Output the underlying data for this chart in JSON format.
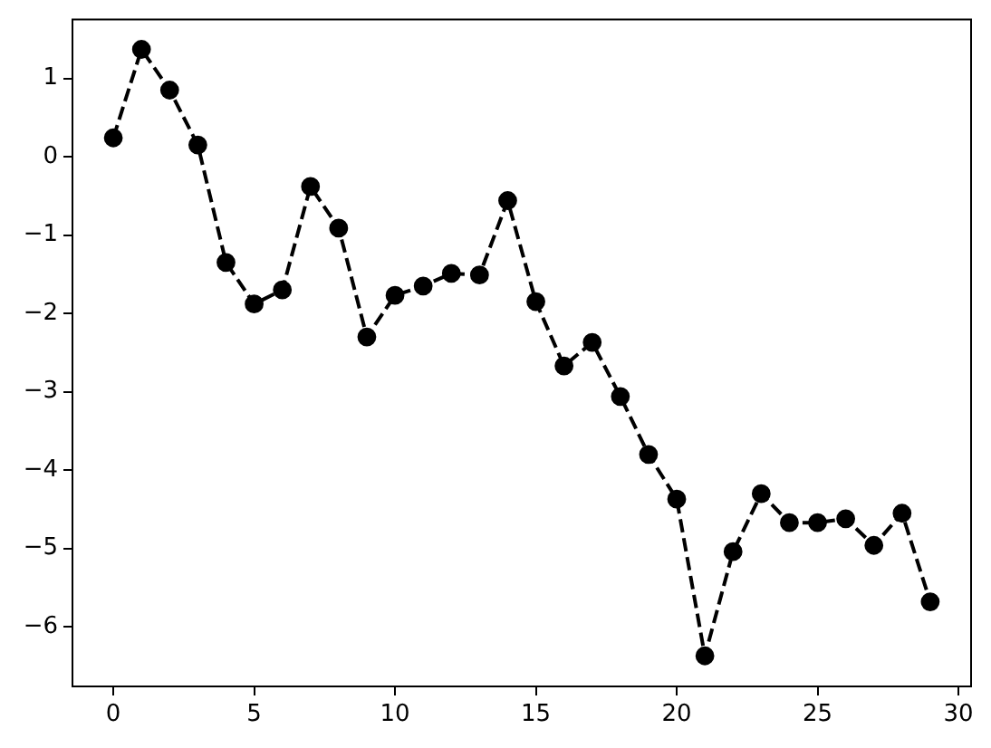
{
  "chart_data": {
    "type": "line",
    "x": [
      0,
      1,
      2,
      3,
      4,
      5,
      6,
      7,
      8,
      9,
      10,
      11,
      12,
      13,
      14,
      15,
      16,
      17,
      18,
      19,
      20,
      21,
      22,
      23,
      24,
      25,
      26,
      27,
      28,
      29
    ],
    "series": [
      {
        "color": "#000000",
        "values": [
          0.24,
          1.37,
          0.85,
          0.15,
          -1.35,
          -1.88,
          -1.7,
          -0.38,
          -0.91,
          -2.3,
          -1.77,
          -1.65,
          -1.49,
          -1.51,
          -0.56,
          -1.85,
          -2.67,
          -2.37,
          -3.06,
          -3.8,
          -4.37,
          -6.37,
          -5.04,
          -4.3,
          -4.67,
          -4.67,
          -4.62,
          -4.96,
          -4.55,
          -5.68
        ]
      }
    ],
    "xlim": [
      -1.45,
      30.45
    ],
    "ylim": [
      -6.76,
      1.75
    ],
    "xticks": [
      0,
      5,
      10,
      15,
      20,
      25,
      30
    ],
    "yticks": [
      {
        "value": -6,
        "label": "−6"
      },
      {
        "value": -5,
        "label": "−5"
      },
      {
        "value": -4,
        "label": "−4"
      },
      {
        "value": -3,
        "label": "−3"
      },
      {
        "value": -2,
        "label": "−2"
      },
      {
        "value": -1,
        "label": "−1"
      },
      0,
      1
    ],
    "grid": false,
    "legend": false,
    "marker": "circle",
    "line_style": "dashed"
  }
}
